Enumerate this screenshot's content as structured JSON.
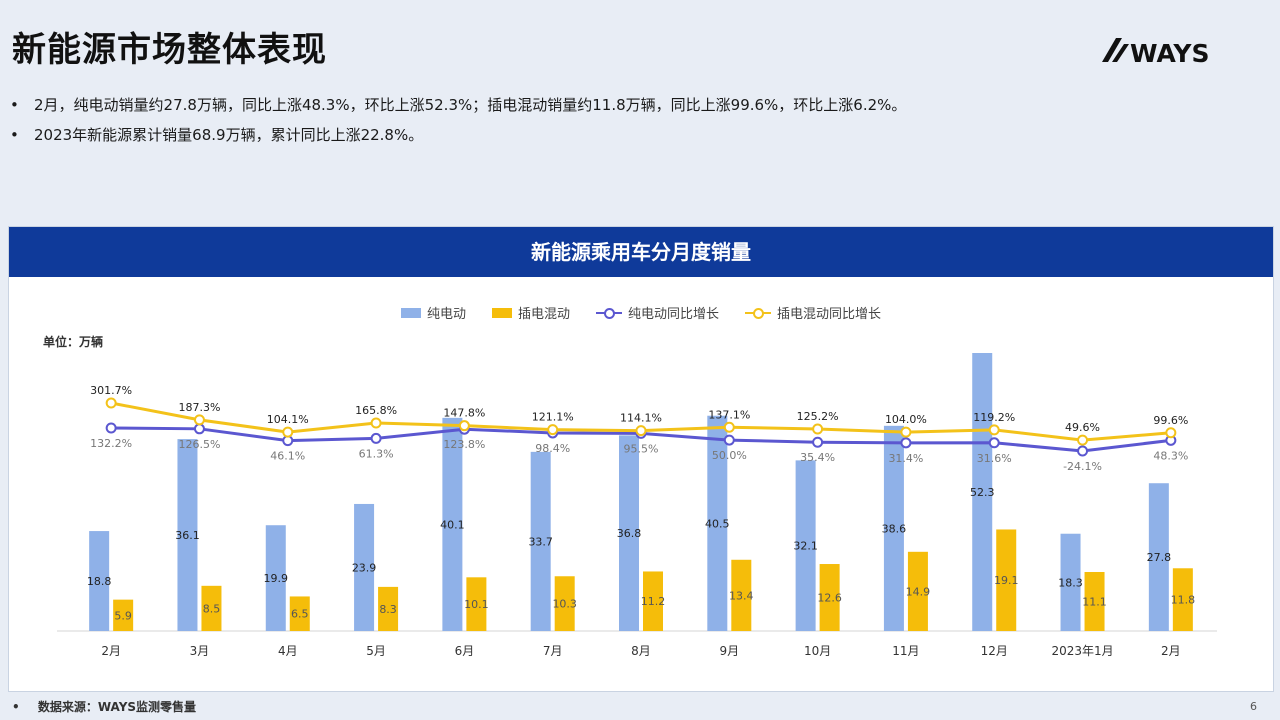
{
  "slide": {
    "title": "新能源市场整体表现",
    "logo_text": "WAYS",
    "bullets": [
      "2月，纯电动销量约27.8万辆，同比上涨48.3%，环比上涨52.3%；插电混动销量约11.8万辆，同比上涨99.6%，环比上涨6.2%。",
      "2023年新能源累计销量68.9万辆，累计同比上涨22.8%。"
    ],
    "source": "数据来源：WAYS监测零售量",
    "page_number": "6"
  },
  "colors": {
    "header_bg": "#0f3a9a",
    "bev_bar": "#8fb1e8",
    "phev_bar": "#f5bd0a",
    "bev_line": "#5b57d0",
    "phev_line": "#f3c21a"
  },
  "chart_data": {
    "type": "bar",
    "title": "新能源乘用车分月度销量",
    "unit_label": "单位：万辆",
    "categories": [
      "2月",
      "3月",
      "4月",
      "5月",
      "6月",
      "7月",
      "8月",
      "9月",
      "10月",
      "11月",
      "12月",
      "2023年1月",
      "2月"
    ],
    "series": [
      {
        "name": "纯电动",
        "kind": "bar",
        "values": [
          18.8,
          36.1,
          19.9,
          23.9,
          40.1,
          33.7,
          36.8,
          40.5,
          32.1,
          38.6,
          52.3,
          18.3,
          27.8
        ]
      },
      {
        "name": "插电混动",
        "kind": "bar",
        "values": [
          5.9,
          8.5,
          6.5,
          8.3,
          10.1,
          10.3,
          11.2,
          13.4,
          12.6,
          14.9,
          19.1,
          11.1,
          11.8
        ]
      },
      {
        "name": "纯电动同比增长",
        "kind": "line",
        "values": [
          132.2,
          126.5,
          46.1,
          61.3,
          123.8,
          98.4,
          95.5,
          50.0,
          35.4,
          31.4,
          31.6,
          -24.1,
          48.3
        ],
        "labels": [
          "132.2%",
          "126.5%",
          "46.1%",
          "61.3%",
          "123.8%",
          "98.4%",
          "95.5%",
          "50.0%",
          "35.4%",
          "31.4%",
          "31.6%",
          "-24.1%",
          "48.3%"
        ]
      },
      {
        "name": "插电混动同比增长",
        "kind": "line",
        "values": [
          301.7,
          187.3,
          104.1,
          165.8,
          147.8,
          121.1,
          114.1,
          137.1,
          125.2,
          104.0,
          119.2,
          49.6,
          99.6
        ],
        "labels": [
          "301.7%",
          "187.3%",
          "104.1%",
          "165.8%",
          "147.8%",
          "121.1%",
          "114.1%",
          "137.1%",
          "125.2%",
          "104.0%",
          "119.2%",
          "49.6%",
          "99.6%"
        ]
      }
    ],
    "bar_axis_range": [
      0,
      52.3
    ],
    "line_axis_range": [
      -24.1,
      301.7
    ],
    "legend_position": "top",
    "grid": false
  }
}
